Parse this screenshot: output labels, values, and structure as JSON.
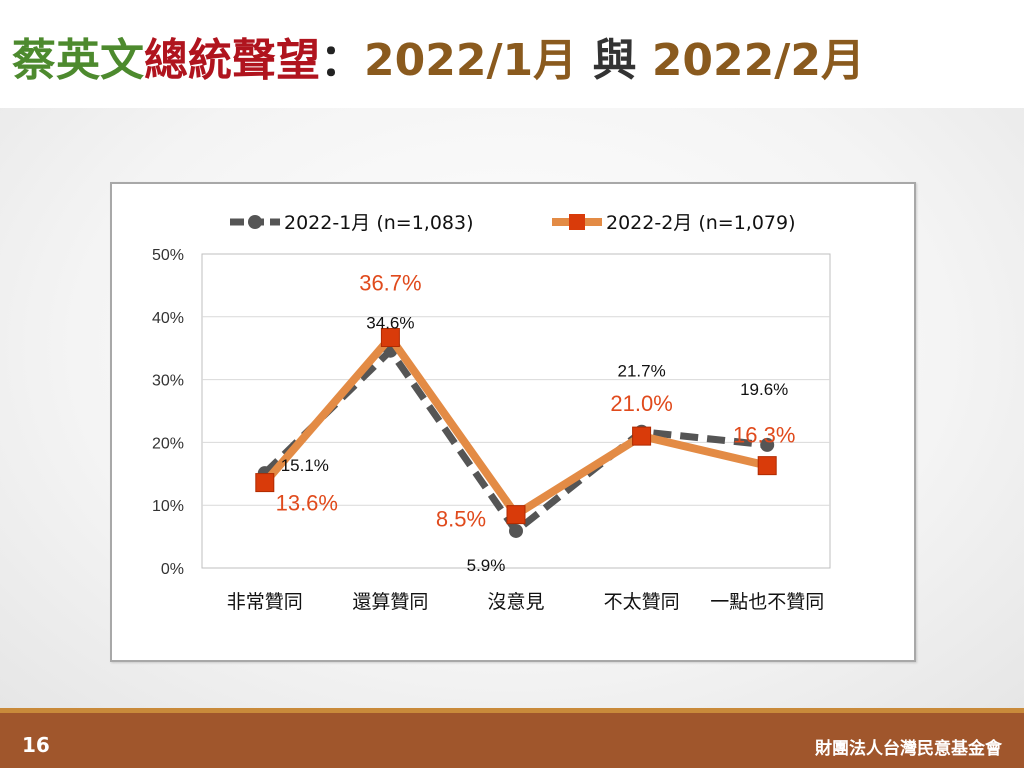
{
  "slide": {
    "title_part1": "蔡英文",
    "title_part2": "總統聲望",
    "title_colon": "：",
    "title_date1": "2022/1月",
    "title_connector": "與",
    "title_date2": "2022/2月",
    "page_number": "16",
    "organization": "財團法人台灣民意基金會"
  },
  "colors": {
    "series1": "#555555",
    "series2": "#e38b45",
    "series2_marker": "#d93b0a",
    "series2_label": "#e04a1c",
    "footer": "#a0562c"
  },
  "chart_data": {
    "type": "line",
    "title": "",
    "xlabel": "",
    "ylabel": "",
    "ylim": [
      0,
      50
    ],
    "y_ticks": [
      "0%",
      "10%",
      "20%",
      "30%",
      "40%",
      "50%"
    ],
    "grid": true,
    "legend_position": "top",
    "categories": [
      "非常贊同",
      "還算贊同",
      "沒意見",
      "不太贊同",
      "一點也不贊同"
    ],
    "series": [
      {
        "name": "2022-1月  (n=1,083)",
        "values": [
          15.1,
          34.6,
          5.9,
          21.7,
          19.6
        ],
        "labels": [
          "15.1%",
          "34.6%",
          "5.9%",
          "21.7%",
          "19.6%"
        ],
        "style": "dashed",
        "marker": "circle"
      },
      {
        "name": "2022-2月  (n=1,079)",
        "values": [
          13.6,
          36.7,
          8.5,
          21.0,
          16.3
        ],
        "labels": [
          "13.6%",
          "36.7%",
          "8.5%",
          "21.0%",
          "16.3%"
        ],
        "style": "solid",
        "marker": "square"
      }
    ]
  }
}
